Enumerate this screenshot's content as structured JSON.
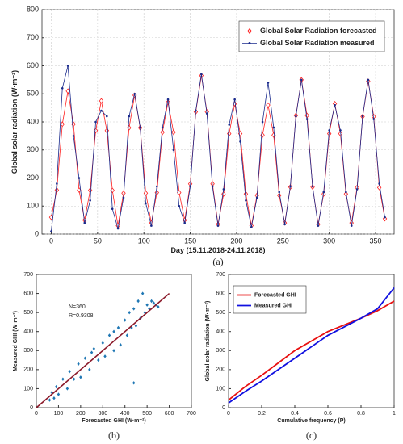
{
  "chart_data": [
    {
      "type": "line",
      "caption": "(a)",
      "xlabel": "Day (15.11.2018-24.11.2018)",
      "ylabel": "Global solar radiation (W·m⁻²)",
      "x": [
        0,
        6,
        12,
        18,
        24,
        30,
        36,
        42,
        48,
        54,
        60,
        66,
        72,
        78,
        84,
        90,
        96,
        102,
        108,
        114,
        120,
        126,
        132,
        138,
        144,
        150,
        156,
        162,
        168,
        174,
        180,
        186,
        192,
        198,
        204,
        210,
        216,
        222,
        228,
        234,
        240,
        246,
        252,
        258,
        264,
        270,
        276,
        282,
        288,
        294,
        300,
        306,
        312,
        318,
        324,
        330,
        336,
        342,
        348,
        354,
        360
      ],
      "series": [
        {
          "name": "Global Solar Radiation forecasted",
          "color": "#ff2020",
          "marker": "diamond",
          "values": [
            60,
            157,
            392,
            510,
            392,
            157,
            50,
            156,
            369,
            475,
            369,
            156,
            30,
            146,
            379,
            495,
            379,
            146,
            40,
            148,
            363,
            470,
            363,
            148,
            50,
            179,
            436,
            565,
            436,
            179,
            35,
            143,
            358,
            465,
            358,
            143,
            30,
            138,
            353,
            460,
            353,
            138,
            40,
            168,
            423,
            550,
            423,
            168,
            35,
            143,
            358,
            465,
            358,
            143,
            40,
            166,
            419,
            545,
            419,
            166,
            55
          ]
        },
        {
          "name": "Global Solar Radiation measured",
          "color": "#1a2a8c",
          "marker": "dot",
          "values": [
            10,
            180,
            520,
            600,
            350,
            200,
            40,
            120,
            400,
            440,
            420,
            90,
            20,
            130,
            420,
            500,
            380,
            110,
            30,
            170,
            380,
            480,
            300,
            100,
            40,
            170,
            440,
            570,
            430,
            170,
            30,
            160,
            390,
            480,
            330,
            120,
            25,
            130,
            400,
            540,
            380,
            150,
            35,
            170,
            420,
            550,
            410,
            170,
            30,
            150,
            370,
            460,
            370,
            150,
            30,
            160,
            420,
            550,
            410,
            180,
            60
          ]
        }
      ],
      "xlim": [
        -10,
        370
      ],
      "xticks": [
        0,
        50,
        100,
        150,
        200,
        250,
        300,
        350
      ],
      "ylim": [
        0,
        800
      ],
      "yticks": [
        0,
        100,
        200,
        300,
        400,
        500,
        600,
        700,
        800
      ],
      "grid": true,
      "legend": "upper right"
    },
    {
      "type": "scatter",
      "caption": "(b)",
      "xlabel": "Forecasted GHI (W·m⁻²)",
      "ylabel": "Measured GHI (W·m⁻²)",
      "annotations": [
        "N=360",
        "R=0.9308"
      ],
      "color": "#1f77b4",
      "x": [
        60,
        70,
        80,
        90,
        100,
        120,
        140,
        150,
        170,
        190,
        200,
        220,
        240,
        260,
        280,
        300,
        310,
        330,
        350,
        370,
        380,
        400,
        410,
        420,
        430,
        440,
        450,
        460,
        470,
        480,
        490,
        500,
        510,
        520,
        530,
        540,
        550,
        440,
        350,
        250
      ],
      "values": [
        40,
        80,
        50,
        110,
        70,
        150,
        100,
        190,
        150,
        230,
        160,
        260,
        200,
        310,
        250,
        340,
        270,
        380,
        300,
        420,
        330,
        460,
        380,
        500,
        420,
        520,
        430,
        560,
        470,
        600,
        500,
        540,
        520,
        560,
        550,
        540,
        530,
        130,
        400,
        290
      ],
      "fit": {
        "x": [
          0,
          600
        ],
        "values": [
          0,
          600
        ],
        "color": "#8b1a2a"
      },
      "xlim": [
        0,
        700
      ],
      "xticks": [
        0,
        100,
        200,
        300,
        400,
        500,
        600,
        700
      ],
      "ylim": [
        0,
        700
      ],
      "yticks": [
        0,
        100,
        200,
        300,
        400,
        500,
        600,
        700
      ],
      "grid": false
    },
    {
      "type": "line",
      "caption": "(c)",
      "xlabel": "Cumulative frequency (P)",
      "ylabel": "Global solar radiation (W·m⁻²)",
      "x": [
        0,
        0.1,
        0.2,
        0.3,
        0.4,
        0.5,
        0.6,
        0.7,
        0.8,
        0.9,
        1
      ],
      "series": [
        {
          "name": "Forecasted GHI",
          "color": "#e81010",
          "values": [
            40,
            110,
            170,
            235,
            300,
            350,
            400,
            435,
            470,
            510,
            560
          ]
        },
        {
          "name": "Measured GHI",
          "color": "#1010e0",
          "values": [
            25,
            85,
            140,
            200,
            260,
            320,
            380,
            425,
            470,
            520,
            630
          ]
        }
      ],
      "xlim": [
        0,
        1
      ],
      "xticks": [
        0,
        0.2,
        0.4,
        0.6,
        0.8,
        1
      ],
      "ylim": [
        0,
        700
      ],
      "yticks": [
        0,
        100,
        200,
        300,
        400,
        500,
        600,
        700
      ],
      "grid": false,
      "legend": "upper left"
    }
  ]
}
